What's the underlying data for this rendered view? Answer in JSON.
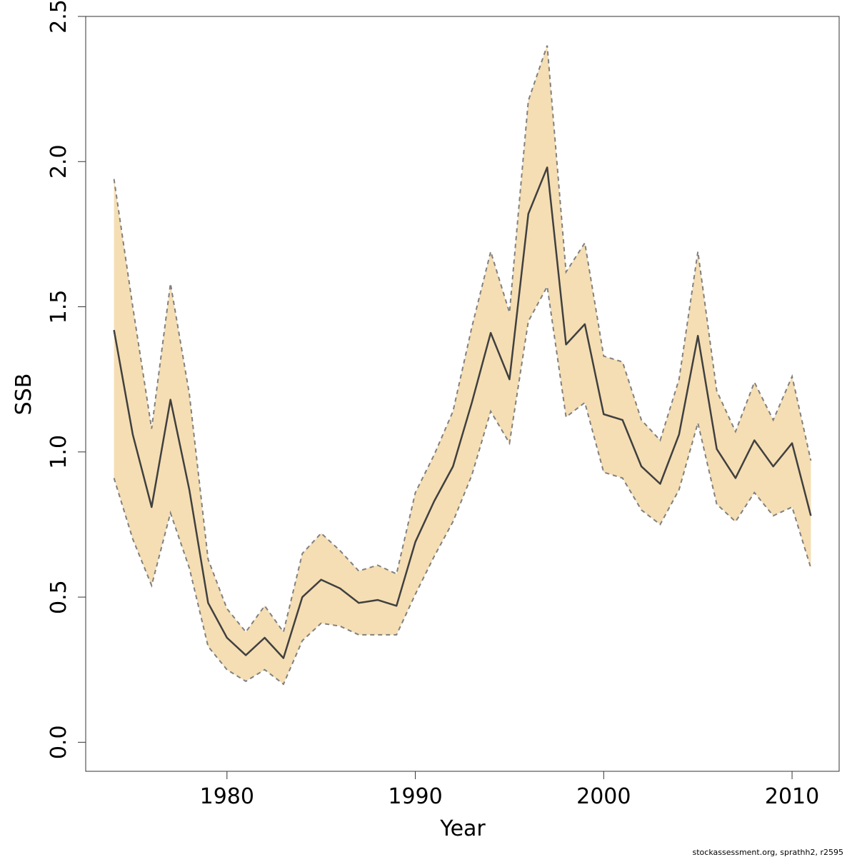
{
  "chart_data": {
    "type": "line",
    "xlabel": "Year",
    "ylabel": "SSB",
    "xlim": [
      1972.5,
      2012.5
    ],
    "ylim": [
      -0.1,
      2.5
    ],
    "x_ticks": [
      1980,
      1990,
      2000,
      2010
    ],
    "y_ticks": [
      0.0,
      0.5,
      1.0,
      1.5,
      2.0,
      2.5
    ],
    "y_tick_labels": [
      "0.0",
      "0.5",
      "1.0",
      "1.5",
      "2.0",
      "2.5"
    ],
    "grid": false,
    "colors": {
      "band": "#f5deb3",
      "line": "#404040",
      "bounds": "#808080"
    },
    "x": [
      1974,
      1975,
      1976,
      1977,
      1978,
      1979,
      1980,
      1981,
      1982,
      1983,
      1984,
      1985,
      1986,
      1987,
      1988,
      1989,
      1990,
      1991,
      1992,
      1993,
      1994,
      1995,
      1996,
      1997,
      1998,
      1999,
      2000,
      2001,
      2002,
      2003,
      2004,
      2005,
      2006,
      2007,
      2008,
      2009,
      2010,
      2011
    ],
    "series": [
      {
        "role": "estimate",
        "values": [
          1.42,
          1.06,
          0.81,
          1.18,
          0.87,
          0.48,
          0.36,
          0.3,
          0.36,
          0.29,
          0.5,
          0.56,
          0.53,
          0.48,
          0.49,
          0.47,
          0.69,
          0.83,
          0.95,
          1.17,
          1.41,
          1.25,
          1.82,
          1.98,
          1.37,
          1.44,
          1.13,
          1.11,
          0.95,
          0.89,
          1.06,
          1.4,
          1.01,
          0.91,
          1.04,
          0.95,
          1.03,
          0.78
        ]
      },
      {
        "role": "upper",
        "values": [
          1.94,
          1.5,
          1.08,
          1.58,
          1.2,
          0.63,
          0.46,
          0.38,
          0.47,
          0.38,
          0.65,
          0.72,
          0.66,
          0.59,
          0.61,
          0.58,
          0.86,
          0.99,
          1.14,
          1.43,
          1.69,
          1.48,
          2.21,
          2.4,
          1.62,
          1.72,
          1.33,
          1.31,
          1.11,
          1.04,
          1.25,
          1.69,
          1.21,
          1.07,
          1.24,
          1.11,
          1.26,
          0.97
        ]
      },
      {
        "role": "lower",
        "values": [
          0.91,
          0.7,
          0.54,
          0.79,
          0.6,
          0.33,
          0.25,
          0.21,
          0.25,
          0.2,
          0.35,
          0.41,
          0.4,
          0.37,
          0.37,
          0.37,
          0.51,
          0.64,
          0.76,
          0.92,
          1.14,
          1.03,
          1.45,
          1.57,
          1.12,
          1.17,
          0.93,
          0.91,
          0.8,
          0.75,
          0.87,
          1.1,
          0.82,
          0.76,
          0.86,
          0.78,
          0.81,
          0.6
        ]
      }
    ]
  },
  "footer": "stockassessment.org, sprathh2, r2595"
}
